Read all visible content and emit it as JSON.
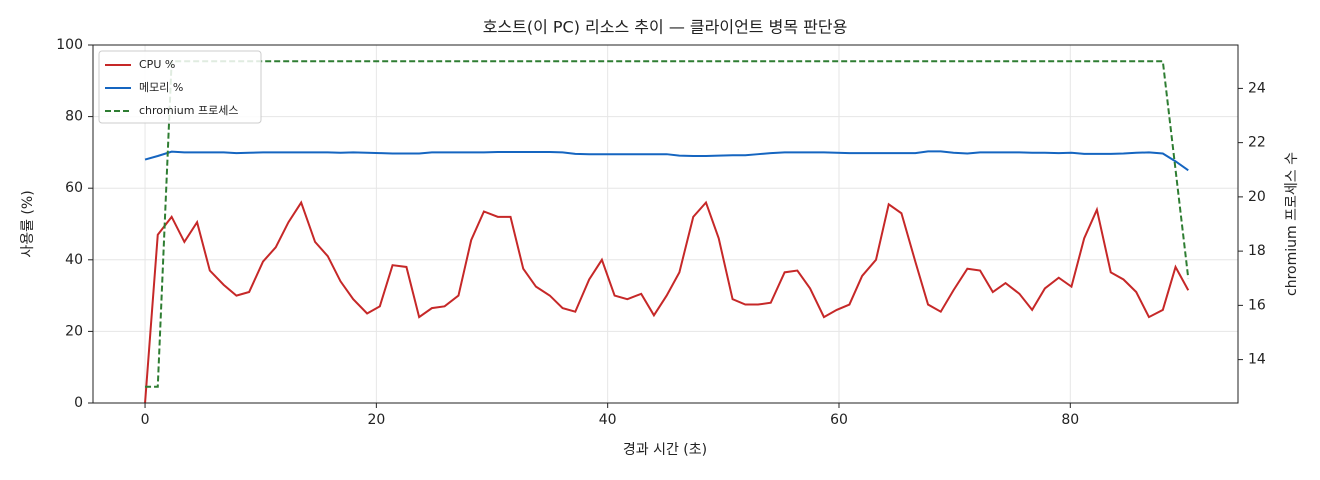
{
  "chart_data": {
    "type": "line",
    "title": "호스트(이 PC) 리소스 추이 — 클라이언트 병목 판단용",
    "x_label": "경과 시간 (초)",
    "y_label": "사용률 (%)",
    "y2_label": "chromium 프로세스 수",
    "x": [
      0,
      1.1,
      2.3,
      3.4,
      4.5,
      5.6,
      6.8,
      7.9,
      9.0,
      10.2,
      11.3,
      12.4,
      13.5,
      14.7,
      15.8,
      16.9,
      18.0,
      19.2,
      20.3,
      21.4,
      22.6,
      23.7,
      24.8,
      25.9,
      27.1,
      28.2,
      29.3,
      30.5,
      31.6,
      32.7,
      33.8,
      35.0,
      36.1,
      37.2,
      38.4,
      39.5,
      40.6,
      41.7,
      42.9,
      44.0,
      45.1,
      46.2,
      47.4,
      48.5,
      49.6,
      50.8,
      51.9,
      53.0,
      54.1,
      55.3,
      56.4,
      57.5,
      58.7,
      59.8,
      60.9,
      62.0,
      63.2,
      64.3,
      65.4,
      66.6,
      67.7,
      68.8,
      69.9,
      71.1,
      72.2,
      73.3,
      74.4,
      75.6,
      76.7,
      77.8,
      79.0,
      80.1,
      81.2,
      82.3,
      83.5,
      84.6,
      85.7,
      86.8,
      88.0,
      89.1,
      90.2
    ],
    "series": [
      {
        "name": "CPU %",
        "color": "#c62828",
        "linestyle": "solid",
        "axis": "y",
        "values": [
          0,
          47,
          52,
          45,
          50.5,
          37,
          33,
          30,
          31,
          39.5,
          43.5,
          50.5,
          56,
          45,
          41,
          34,
          29,
          25,
          27,
          38.5,
          38,
          24,
          26.5,
          27,
          30,
          45.5,
          53.5,
          52,
          52,
          37.5,
          32.5,
          30,
          26.5,
          25.5,
          34.5,
          40,
          30,
          29,
          30.5,
          24.5,
          30,
          36.5,
          52,
          56,
          46,
          29,
          27.5,
          27.5,
          28,
          36.5,
          37,
          32,
          24,
          26,
          27.5,
          35.5,
          40,
          55.5,
          53,
          39.5,
          27.5,
          25.5,
          31.5,
          37.5,
          37,
          31,
          33.5,
          30.5,
          26,
          32,
          35,
          32.5,
          46,
          54,
          36.5,
          34.5,
          31,
          24,
          26,
          38,
          31.5
        ]
      },
      {
        "name": "메모리 %",
        "color": "#1565c0",
        "linestyle": "solid",
        "axis": "y",
        "values": [
          68,
          69,
          70.2,
          70,
          70,
          70,
          70,
          69.8,
          69.9,
          70,
          70,
          70,
          70,
          70,
          70,
          69.9,
          70,
          69.9,
          69.8,
          69.7,
          69.7,
          69.7,
          70,
          70,
          70,
          70,
          70,
          70.1,
          70.1,
          70.1,
          70.1,
          70.1,
          70,
          69.6,
          69.5,
          69.5,
          69.5,
          69.5,
          69.5,
          69.5,
          69.5,
          69.1,
          69,
          69,
          69.1,
          69.2,
          69.2,
          69.5,
          69.8,
          70,
          70,
          70,
          70,
          69.9,
          69.8,
          69.8,
          69.8,
          69.8,
          69.8,
          69.8,
          70.3,
          70.3,
          69.9,
          69.7,
          70,
          70,
          70,
          70,
          69.9,
          69.9,
          69.8,
          69.9,
          69.6,
          69.6,
          69.6,
          69.7,
          69.9,
          70,
          69.7,
          67.5,
          65
        ]
      },
      {
        "name": "chromium 프로세스",
        "color": "#2e7d32",
        "linestyle": "dashed",
        "axis": "y2",
        "values": [
          13,
          13,
          25,
          25,
          25,
          25,
          25,
          25,
          25,
          25,
          25,
          25,
          25,
          25,
          25,
          25,
          25,
          25,
          25,
          25,
          25,
          25,
          25,
          25,
          25,
          25,
          25,
          25,
          25,
          25,
          25,
          25,
          25,
          25,
          25,
          25,
          25,
          25,
          25,
          25,
          25,
          25,
          25,
          25,
          25,
          25,
          25,
          25,
          25,
          25,
          25,
          25,
          25,
          25,
          25,
          25,
          25,
          25,
          25,
          25,
          25,
          25,
          25,
          25,
          25,
          25,
          25,
          25,
          25,
          25,
          25,
          25,
          25,
          25,
          25,
          25,
          25,
          25,
          25,
          21,
          17
        ]
      }
    ],
    "xlim": [
      -4.5,
      94.5
    ],
    "xticks": [
      0,
      20,
      40,
      60,
      80
    ],
    "ylim": [
      0,
      100
    ],
    "yticks": [
      0,
      20,
      40,
      60,
      80,
      100
    ],
    "y2lim": [
      12.4,
      25.6
    ],
    "y2ticks": [
      14,
      16,
      18,
      20,
      22,
      24
    ],
    "grid": true,
    "legend": "upper left"
  }
}
